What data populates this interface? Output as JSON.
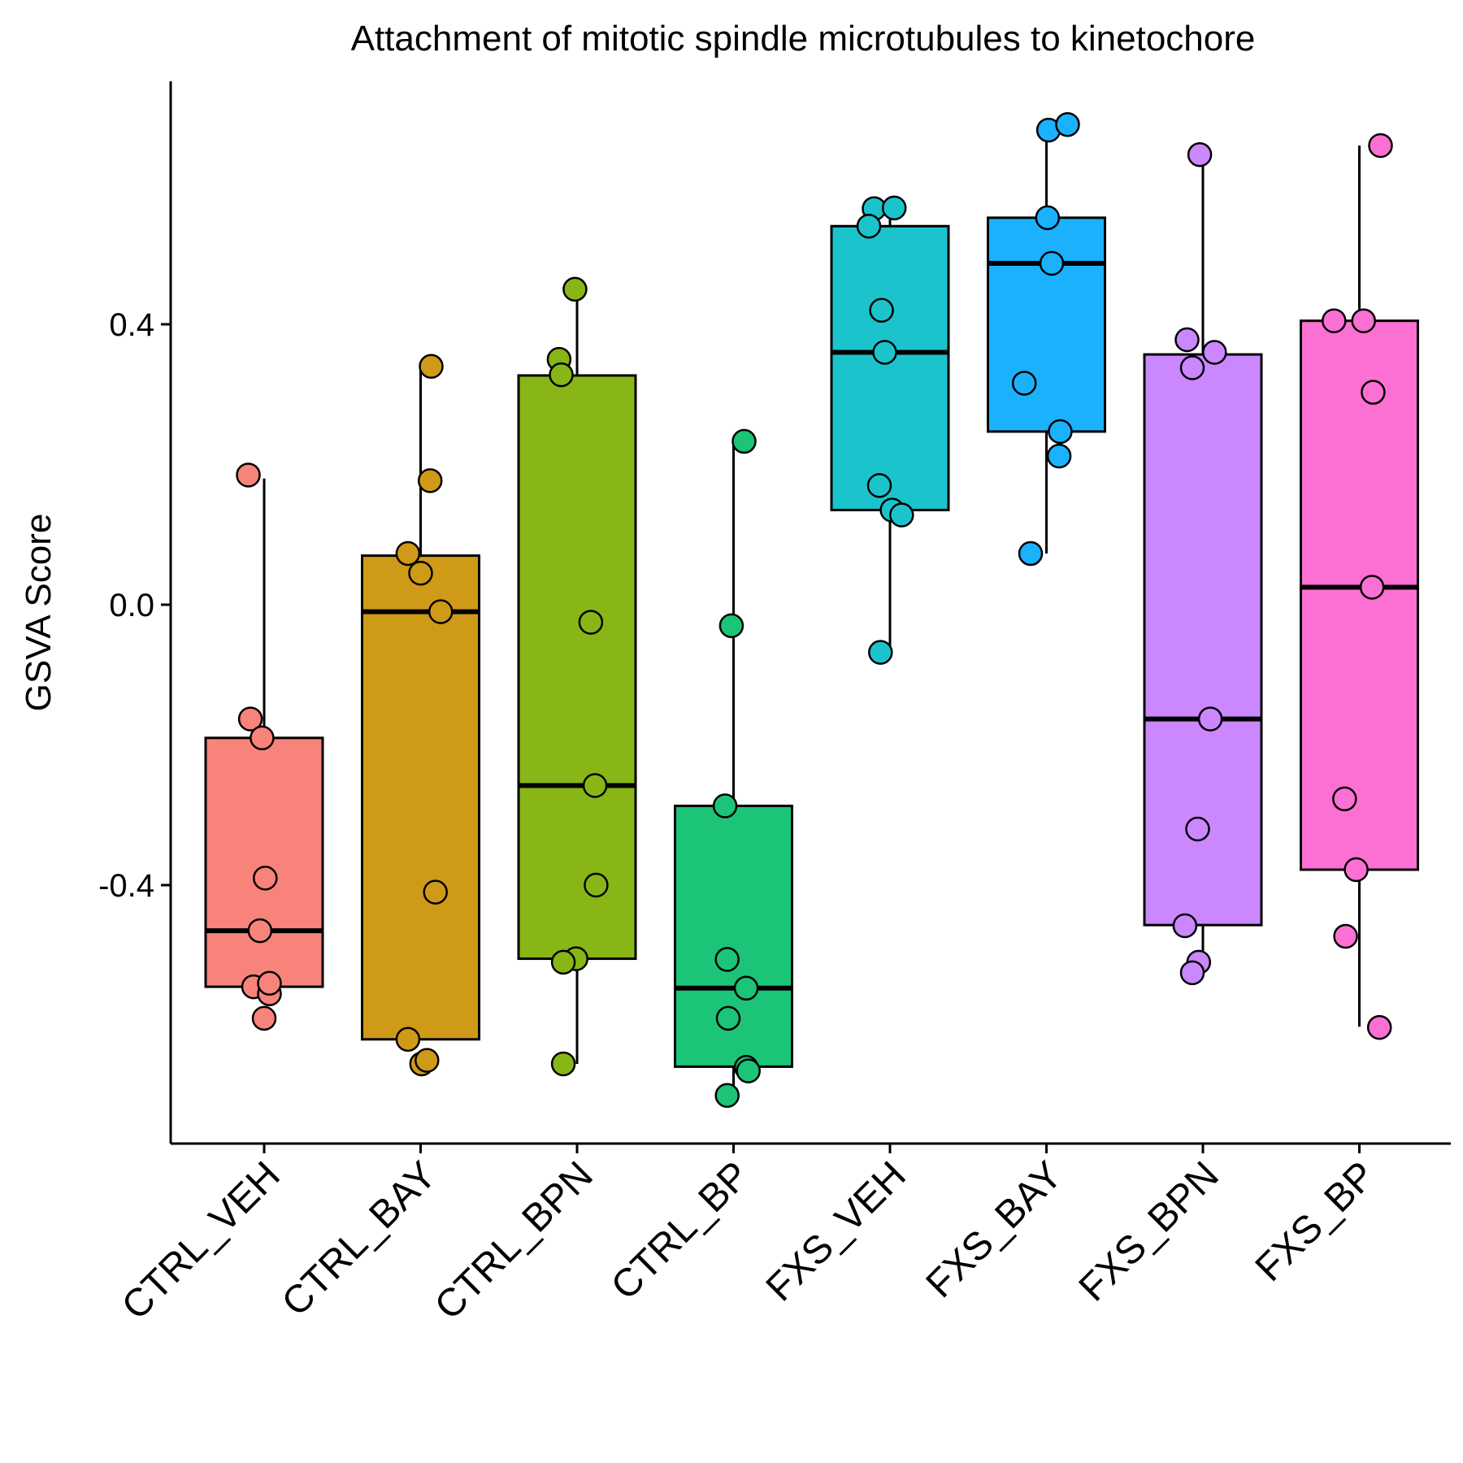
{
  "chart_data": {
    "type": "box",
    "title": "Attachment of mitotic spindle microtubules to kinetochore",
    "xlabel": "",
    "ylabel": "GSVA Score",
    "ylim": [
      -0.77,
      0.76
    ],
    "yticks": [
      {
        "value": -0.4,
        "label": "-0.4"
      },
      {
        "value": 0.0,
        "label": "0.0"
      },
      {
        "value": 0.4,
        "label": "0.4"
      }
    ],
    "grid": false,
    "legend": "none",
    "categories": [
      "CTRL_VEH",
      "CTRL_BAY",
      "CTRL_BPN",
      "CTRL_BP",
      "FXS_VEH",
      "FXS_BAY",
      "FXS_BPN",
      "FXS_BP"
    ],
    "colors": [
      "#F8837A",
      "#CF9A17",
      "#88B616",
      "#1BC476",
      "#1BC4CC",
      "#1BB1FD",
      "#CB87FD",
      "#FD70D3"
    ],
    "boxes": [
      {
        "whisker_low": -0.545,
        "q1": -0.545,
        "median": -0.465,
        "q3": -0.19,
        "whisker_high": 0.18
      },
      {
        "whisker_low": -0.62,
        "q1": -0.62,
        "median": -0.01,
        "q3": 0.07,
        "whisker_high": 0.34
      },
      {
        "whisker_low": -0.655,
        "q1": -0.505,
        "median": -0.258,
        "q3": 0.327,
        "whisker_high": 0.45
      },
      {
        "whisker_low": -0.69,
        "q1": -0.659,
        "median": -0.547,
        "q3": -0.287,
        "whisker_high": 0.233
      },
      {
        "whisker_low": -0.066,
        "q1": 0.135,
        "median": 0.36,
        "q3": 0.54,
        "whisker_high": 0.565
      },
      {
        "whisker_low": 0.073,
        "q1": 0.247,
        "median": 0.487,
        "q3": 0.552,
        "whisker_high": 0.69
      },
      {
        "whisker_low": -0.52,
        "q1": -0.457,
        "median": -0.163,
        "q3": 0.357,
        "whisker_high": 0.655
      },
      {
        "whisker_low": -0.602,
        "q1": -0.378,
        "median": 0.025,
        "q3": 0.405,
        "whisker_high": 0.655
      }
    ],
    "points": [
      [
        [
          -0.15,
          0.185
        ],
        [
          -0.13,
          -0.163
        ],
        [
          -0.02,
          -0.19
        ],
        [
          0.01,
          -0.39
        ],
        [
          -0.04,
          -0.465
        ],
        [
          -0.1,
          -0.545
        ],
        [
          0.05,
          -0.555
        ],
        [
          0.05,
          -0.54
        ],
        [
          0.0,
          -0.59
        ]
      ],
      [
        [
          0.1,
          0.34
        ],
        [
          0.09,
          0.177
        ],
        [
          -0.12,
          0.073
        ],
        [
          0.0,
          0.045
        ],
        [
          0.19,
          -0.01
        ],
        [
          0.14,
          -0.41
        ],
        [
          -0.12,
          -0.62
        ],
        [
          0.01,
          -0.655
        ],
        [
          0.06,
          -0.65
        ]
      ],
      [
        [
          -0.02,
          0.45
        ],
        [
          -0.17,
          0.35
        ],
        [
          -0.15,
          0.328
        ],
        [
          0.13,
          -0.025
        ],
        [
          0.17,
          -0.258
        ],
        [
          0.18,
          -0.4
        ],
        [
          -0.01,
          -0.505
        ],
        [
          -0.13,
          -0.51
        ],
        [
          -0.13,
          -0.655
        ]
      ],
      [
        [
          0.1,
          0.233
        ],
        [
          -0.02,
          -0.03
        ],
        [
          -0.08,
          -0.287
        ],
        [
          -0.06,
          -0.506
        ],
        [
          0.12,
          -0.547
        ],
        [
          -0.05,
          -0.59
        ],
        [
          0.12,
          -0.66
        ],
        [
          0.14,
          -0.665
        ],
        [
          -0.06,
          -0.7
        ]
      ],
      [
        [
          -0.15,
          0.565
        ],
        [
          0.04,
          0.566
        ],
        [
          -0.2,
          0.54
        ],
        [
          -0.08,
          0.42
        ],
        [
          -0.05,
          0.36
        ],
        [
          -0.1,
          0.17
        ],
        [
          0.02,
          0.135
        ],
        [
          0.11,
          0.128
        ],
        [
          -0.09,
          -0.068
        ]
      ],
      [
        [
          0.02,
          0.677
        ],
        [
          0.2,
          0.685
        ],
        [
          0.01,
          0.552
        ],
        [
          0.05,
          0.487
        ],
        [
          -0.21,
          0.316
        ],
        [
          0.13,
          0.247
        ],
        [
          0.12,
          0.212
        ],
        [
          -0.15,
          0.073
        ]
      ],
      [
        [
          -0.03,
          0.642
        ],
        [
          0.11,
          0.36
        ],
        [
          -0.15,
          0.378
        ],
        [
          -0.1,
          0.338
        ],
        [
          0.07,
          -0.163
        ],
        [
          -0.05,
          -0.32
        ],
        [
          -0.17,
          -0.458
        ],
        [
          -0.04,
          -0.51
        ],
        [
          -0.1,
          -0.525
        ]
      ],
      [
        [
          0.2,
          0.655
        ],
        [
          -0.24,
          0.405
        ],
        [
          0.04,
          0.405
        ],
        [
          0.13,
          0.303
        ],
        [
          0.12,
          0.025
        ],
        [
          -0.14,
          -0.277
        ],
        [
          -0.03,
          -0.378
        ],
        [
          -0.13,
          -0.473
        ],
        [
          0.19,
          -0.603
        ]
      ]
    ]
  }
}
